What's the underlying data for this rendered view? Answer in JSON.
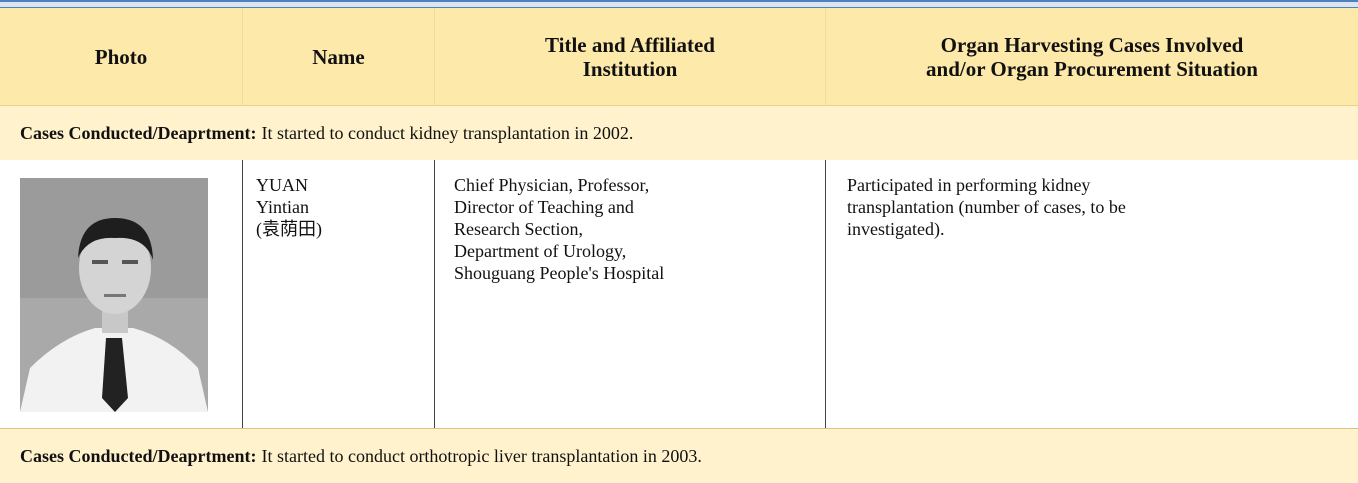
{
  "header": {
    "columns": [
      [
        "Photo"
      ],
      [
        "Name"
      ],
      [
        "Title and Affiliated",
        "Institution"
      ],
      [
        "Organ Harvesting Cases Involved",
        "and/or Organ Procurement Situation"
      ]
    ]
  },
  "sections": [
    {
      "label": "Cases Conducted/Deaprtment:",
      "text": "It started to conduct kidney transplantation in 2002."
    },
    {
      "label": "Cases Conducted/Deaprtment:",
      "text": "It started to conduct orthotropic liver transplantation in 2003."
    }
  ],
  "people": [
    {
      "name": [
        "YUAN",
        "Yintian",
        "(袁荫田)"
      ],
      "title": [
        "Chief Physician, Professor,",
        "Director of Teaching and",
        "Research Section,",
        "Department of Urology,",
        "Shouguang People's Hospital"
      ],
      "cases": [
        "Participated in performing kidney",
        "transplantation (number of cases, to be",
        "investigated)."
      ]
    }
  ]
}
